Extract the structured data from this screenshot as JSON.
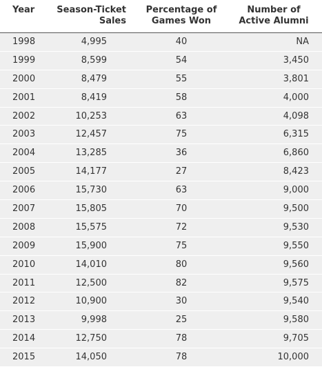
{
  "table": {
    "header": [
      [
        "Year"
      ],
      [
        "Season-Ticket",
        "Sales"
      ],
      [
        "Percentage of",
        "Games Won"
      ],
      [
        "Number of",
        "Active Alumni"
      ]
    ],
    "rows": [
      [
        "1998",
        "4,995",
        "40",
        "NA"
      ],
      [
        "1999",
        "8,599",
        "54",
        "3,450"
      ],
      [
        "2000",
        "8,479",
        "55",
        "3,801"
      ],
      [
        "2001",
        "8,419",
        "58",
        "4,000"
      ],
      [
        "2002",
        "10,253",
        "63",
        "4,098"
      ],
      [
        "2003",
        "12,457",
        "75",
        "6,315"
      ],
      [
        "2004",
        "13,285",
        "36",
        "6,860"
      ],
      [
        "2005",
        "14,177",
        "27",
        "8,423"
      ],
      [
        "2006",
        "15,730",
        "63",
        "9,000"
      ],
      [
        "2007",
        "15,805",
        "70",
        "9,500"
      ],
      [
        "2008",
        "15,575",
        "72",
        "9,530"
      ],
      [
        "2009",
        "15,900",
        "75",
        "9,550"
      ],
      [
        "2010",
        "14,010",
        "80",
        "9,560"
      ],
      [
        "2011",
        "12,500",
        "82",
        "9,575"
      ],
      [
        "2012",
        "10,900",
        "30",
        "9,540"
      ],
      [
        "2013",
        "9,998",
        "25",
        "9,580"
      ],
      [
        "2014",
        "12,750",
        "78",
        "9,705"
      ],
      [
        "2015",
        "14,050",
        "78",
        "10,000"
      ]
    ]
  }
}
